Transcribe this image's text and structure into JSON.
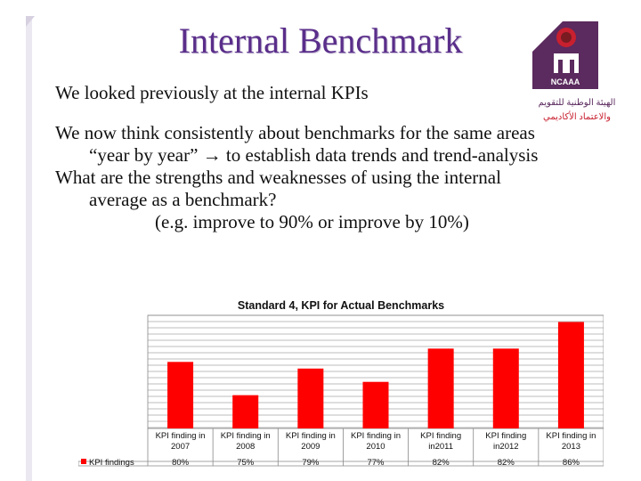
{
  "slide": {
    "title": "Internal Benchmark",
    "bullets": [
      "We looked previously at the internal KPIs",
      "We now think consistently about benchmarks for the same areas",
      "“year by year” → to establish data trends and trend-analysis",
      "What are the strengths and weaknesses of using the internal",
      "average as a benchmark?",
      "(e.g. improve to 90% or improve by 10%)"
    ]
  },
  "logo": {
    "org_abbr": "NCAAA",
    "arabic_line1": "الهيئة الوطنية للتقويم",
    "arabic_line2": "والاعتماد الأكاديمي",
    "colors": {
      "primary": "#5b2a5e",
      "accent": "#c8202f"
    }
  },
  "chart_data": {
    "type": "bar",
    "title": "Standard 4, KPI for Actual Benchmarks",
    "categories": [
      [
        "KPI finding in",
        "2007"
      ],
      [
        "KPI finding in",
        "2008"
      ],
      [
        "KPI finding in",
        "2009"
      ],
      [
        "KPI finding in",
        "2010"
      ],
      [
        "KPI finding",
        "in2011"
      ],
      [
        "KPI finding",
        "in2012"
      ],
      [
        "KPI finding in",
        "2013"
      ]
    ],
    "series": [
      {
        "name": "KPI findings",
        "values": [
          80,
          75,
          79,
          77,
          82,
          82,
          86
        ],
        "labels": [
          "80%",
          "75%",
          "79%",
          "77%",
          "82%",
          "82%",
          "86%"
        ],
        "color": "#ff0000"
      }
    ],
    "ylim": [
      70,
      87
    ],
    "grid": true,
    "data_table": true,
    "legend_placement": "data-table"
  }
}
